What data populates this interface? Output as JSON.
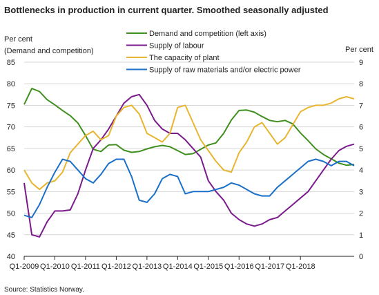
{
  "chart_data": {
    "type": "line",
    "title": "Bottlenecks  in production  in current  quarter. Smoothed  seasonally adjusted",
    "ylabel_left": [
      "Per cent",
      "(Demand and competition)"
    ],
    "ylabel_right": "Per cent",
    "source": "Source: Statistics Norway.",
    "ylim_left": [
      40,
      85
    ],
    "yticks_left": [
      "40",
      "45",
      "50",
      "55",
      "60",
      "65",
      "70",
      "75",
      "80",
      "85"
    ],
    "ylim_right": [
      0,
      9
    ],
    "yticks_right": [
      "0",
      "1",
      "2",
      "3",
      "4",
      "5",
      "6",
      "7",
      "8",
      "9"
    ],
    "x_tick_labels": [
      "Q1-2009",
      "Q1-2010",
      "Q1-2011",
      "Q1-2012",
      "Q1-2013",
      "Q1-2014",
      "Q1-2015",
      "Q1-2016",
      "Q1-2017",
      "Q1-2018"
    ],
    "x_start": "Q1-2009",
    "legend_position": "top-right",
    "series": [
      {
        "name": "Demand and competition (left axis)",
        "axis": "left",
        "color": "#3f8f1f",
        "values": [
          75.2,
          78.9,
          78.2,
          76.3,
          75.1,
          73.8,
          72.6,
          70.9,
          68.0,
          64.8,
          64.3,
          65.8,
          65.9,
          64.6,
          64.1,
          64.3,
          64.9,
          65.4,
          65.7,
          65.4,
          64.5,
          63.6,
          63.8,
          64.8,
          65.8,
          66.3,
          68.5,
          71.6,
          73.8,
          73.9,
          73.4,
          72.4,
          71.5,
          71.2,
          71.5,
          70.7,
          68.6,
          66.8,
          64.9,
          63.6,
          62.6,
          61.6,
          61.1,
          61.3
        ]
      },
      {
        "name": "Supply of labour",
        "axis": "right",
        "color": "#7b1a8c",
        "values": [
          3.4,
          1.0,
          0.9,
          1.6,
          2.1,
          2.1,
          2.15,
          2.9,
          4.0,
          5.0,
          5.4,
          5.9,
          6.5,
          7.1,
          7.4,
          7.5,
          7.0,
          6.3,
          5.9,
          5.7,
          5.7,
          5.4,
          5.0,
          4.6,
          3.5,
          3.0,
          2.6,
          2.0,
          1.7,
          1.5,
          1.4,
          1.5,
          1.7,
          1.8,
          2.1,
          2.4,
          2.7,
          3.0,
          3.5,
          4.0,
          4.5,
          4.9,
          5.1,
          5.2
        ]
      },
      {
        "name": "The capacity of plant",
        "axis": "right",
        "color": "#e8b530",
        "values": [
          4.0,
          3.4,
          3.1,
          3.4,
          3.5,
          3.9,
          4.8,
          5.2,
          5.6,
          5.8,
          5.4,
          5.6,
          6.5,
          6.9,
          7.0,
          6.6,
          5.7,
          5.5,
          5.3,
          5.7,
          6.9,
          7.0,
          6.2,
          5.4,
          4.9,
          4.4,
          4.0,
          3.9,
          4.8,
          5.3,
          6.0,
          6.2,
          5.7,
          5.2,
          5.5,
          6.1,
          6.7,
          6.9,
          7.0,
          7.0,
          7.1,
          7.3,
          7.4,
          7.3
        ]
      },
      {
        "name": "Supply of raw materials and/or electric power",
        "axis": "right",
        "color": "#1a6fc9",
        "values": [
          1.9,
          1.8,
          2.4,
          3.2,
          3.9,
          4.5,
          4.4,
          4.0,
          3.6,
          3.4,
          3.8,
          4.3,
          4.5,
          4.5,
          3.7,
          2.6,
          2.5,
          2.9,
          3.6,
          3.8,
          3.7,
          2.9,
          3.0,
          3.0,
          3.0,
          3.1,
          3.2,
          3.4,
          3.3,
          3.1,
          2.9,
          2.8,
          2.8,
          3.2,
          3.5,
          3.8,
          4.1,
          4.4,
          4.5,
          4.4,
          4.2,
          4.4,
          4.4,
          4.2
        ]
      }
    ]
  }
}
